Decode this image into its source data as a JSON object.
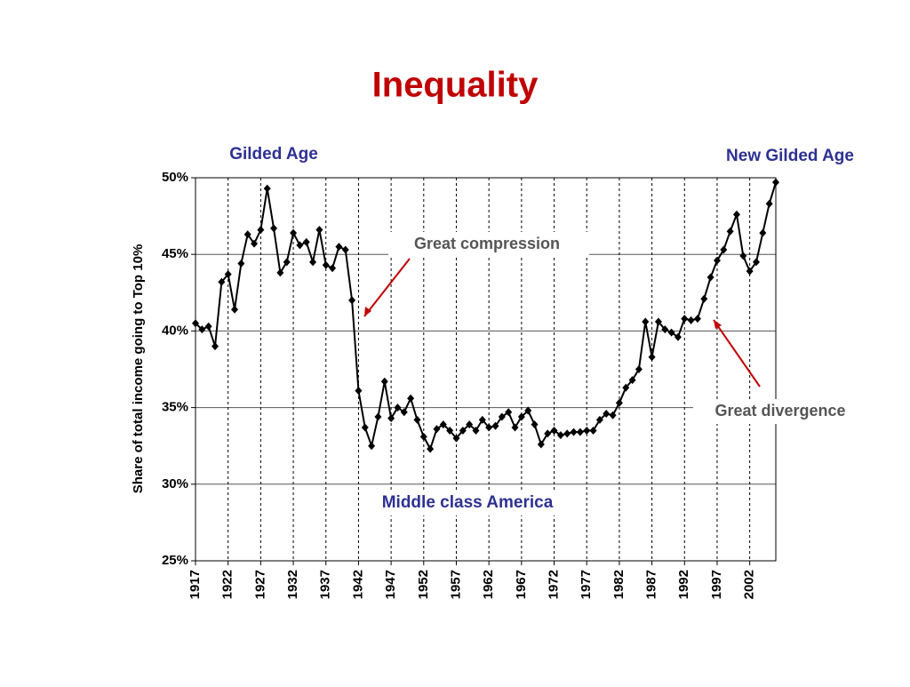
{
  "chart_data": {
    "type": "line",
    "title": "Inequality",
    "y_label": "Share of total income going to Top 10%",
    "x": [
      1917,
      1918,
      1919,
      1920,
      1921,
      1922,
      1923,
      1924,
      1925,
      1926,
      1927,
      1928,
      1929,
      1930,
      1931,
      1932,
      1933,
      1934,
      1935,
      1936,
      1937,
      1938,
      1939,
      1940,
      1941,
      1942,
      1943,
      1944,
      1945,
      1946,
      1947,
      1948,
      1949,
      1950,
      1951,
      1952,
      1953,
      1954,
      1955,
      1956,
      1957,
      1958,
      1959,
      1960,
      1961,
      1962,
      1963,
      1964,
      1965,
      1966,
      1967,
      1968,
      1969,
      1970,
      1971,
      1972,
      1973,
      1974,
      1975,
      1976,
      1977,
      1978,
      1979,
      1980,
      1981,
      1982,
      1983,
      1984,
      1985,
      1986,
      1987,
      1988,
      1989,
      1990,
      1991,
      1992,
      1993,
      1994,
      1995,
      1996,
      1997,
      1998,
      1999,
      2000,
      2001,
      2002,
      2003,
      2004,
      2005,
      2006
    ],
    "series": [
      {
        "name": "Top 10% share",
        "color": "#000000",
        "values": [
          40.5,
          40.1,
          40.3,
          39.0,
          43.2,
          43.7,
          41.4,
          44.4,
          46.3,
          45.7,
          46.6,
          49.3,
          46.7,
          43.8,
          44.5,
          46.4,
          45.6,
          45.8,
          44.5,
          46.6,
          44.3,
          44.1,
          45.5,
          45.3,
          42.0,
          36.1,
          33.7,
          32.5,
          34.4,
          36.7,
          34.3,
          35.0,
          34.7,
          35.6,
          34.2,
          33.1,
          32.3,
          33.6,
          33.9,
          33.5,
          33.0,
          33.5,
          33.9,
          33.5,
          34.2,
          33.7,
          33.8,
          34.4,
          34.7,
          33.7,
          34.4,
          34.8,
          33.9,
          32.6,
          33.3,
          33.5,
          33.2,
          33.3,
          33.4,
          33.4,
          33.5,
          33.5,
          34.2,
          34.6,
          34.5,
          35.3,
          36.3,
          36.8,
          37.5,
          40.6,
          38.3,
          40.6,
          40.1,
          39.9,
          39.6,
          40.8,
          40.7,
          40.8,
          42.1,
          43.5,
          44.6,
          45.3,
          46.5,
          47.6,
          44.9,
          43.9,
          44.5,
          46.4,
          48.3,
          49.7
        ]
      }
    ],
    "xlim": [
      1917,
      2006
    ],
    "xticks": [
      1917,
      1922,
      1927,
      1932,
      1937,
      1942,
      1947,
      1952,
      1957,
      1962,
      1967,
      1972,
      1977,
      1982,
      1987,
      1992,
      1997,
      2002
    ],
    "ylim": [
      25,
      50
    ],
    "yticks": [
      {
        "value": 25,
        "label": "25%"
      },
      {
        "value": 30,
        "label": "30%"
      },
      {
        "value": 35,
        "label": "35%"
      },
      {
        "value": 40,
        "label": "40%"
      },
      {
        "value": 45,
        "label": "45%"
      },
      {
        "value": 50,
        "label": "50%"
      }
    ],
    "grid": true,
    "annotations": [
      "Gilded Age",
      "New Gilded Age",
      "Great compression",
      "Middle class America",
      "Great divergence"
    ]
  }
}
